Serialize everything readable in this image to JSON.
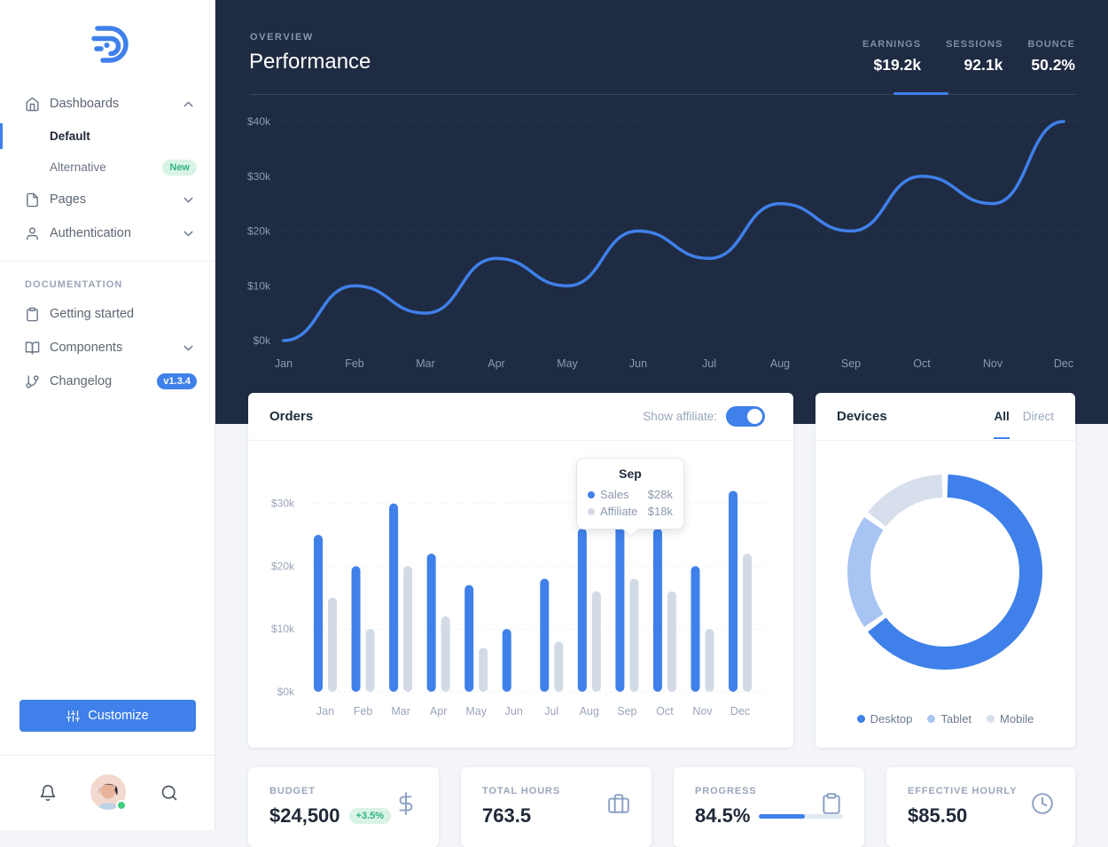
{
  "colors": {
    "accent": "#3f80ea",
    "header_navy": "#1f2b42",
    "green_badge_text": "#2fb380",
    "green_badge_bg": "#d9f4e5"
  },
  "sidebar": {
    "nav": [
      {
        "label": "Dashboards",
        "icon": "home",
        "expanded": true
      },
      {
        "label": "Default",
        "active": true
      },
      {
        "label": "Alternative",
        "badge": "New"
      },
      {
        "label": "Pages",
        "icon": "file"
      },
      {
        "label": "Authentication",
        "icon": "user"
      }
    ],
    "section": "DOCUMENTATION",
    "docs": [
      {
        "label": "Getting started",
        "icon": "clipboard"
      },
      {
        "label": "Components",
        "icon": "book-open"
      },
      {
        "label": "Changelog",
        "icon": "git-branch",
        "badge": "v1.3.4"
      }
    ],
    "customize": "Customize",
    "footer_icons": [
      "bell",
      "avatar",
      "search"
    ]
  },
  "header": {
    "eyebrow": "OVERVIEW",
    "title": "Performance",
    "stats": [
      {
        "label": "EARNINGS",
        "value": "$19.2k",
        "active": true
      },
      {
        "label": "SESSIONS",
        "value": "92.1k"
      },
      {
        "label": "BOUNCE",
        "value": "50.2%"
      }
    ]
  },
  "orders": {
    "title": "Orders",
    "toggle_label": "Show affiliate:",
    "toggle_on": true
  },
  "devices": {
    "title": "Devices",
    "tabs": [
      "All",
      "Direct"
    ],
    "active_tab": "All"
  },
  "chart_data": [
    {
      "id": "performance-line",
      "type": "line",
      "x": [
        "Jan",
        "Feb",
        "Mar",
        "Apr",
        "May",
        "Jun",
        "Jul",
        "Aug",
        "Sep",
        "Oct",
        "Nov",
        "Dec"
      ],
      "series": [
        {
          "name": "Earnings",
          "color": "#3f80ea",
          "values": [
            0,
            10,
            5,
            15,
            10,
            20,
            15,
            25,
            20,
            30,
            25,
            40
          ]
        }
      ],
      "ylim": [
        0,
        40
      ],
      "yticks": [
        {
          "v": 0,
          "label": "$0k"
        },
        {
          "v": 10,
          "label": "$10k"
        },
        {
          "v": 20,
          "label": "$20k"
        },
        {
          "v": 30,
          "label": "$30k"
        },
        {
          "v": 40,
          "label": "$40k"
        }
      ],
      "grid": "dotted-horizontal",
      "legend": "none"
    },
    {
      "id": "orders-bars",
      "type": "bar",
      "categories": [
        "Jan",
        "Feb",
        "Mar",
        "Apr",
        "May",
        "Jun",
        "Jul",
        "Aug",
        "Sep",
        "Oct",
        "Nov",
        "Dec"
      ],
      "series": [
        {
          "name": "Sales",
          "color": "#3f80ea",
          "values": [
            25,
            20,
            30,
            22,
            17,
            10,
            18,
            26,
            28,
            26,
            20,
            32
          ]
        },
        {
          "name": "Affiliate",
          "color": "#d2dae6",
          "values": [
            15,
            10,
            20,
            12,
            7,
            0,
            8,
            16,
            18,
            16,
            10,
            22
          ]
        }
      ],
      "ylim": [
        0,
        30
      ],
      "yticks": [
        {
          "v": 0,
          "label": "$0k"
        },
        {
          "v": 10,
          "label": "$10k"
        },
        {
          "v": 20,
          "label": "$20k"
        },
        {
          "v": 30,
          "label": "$30k"
        }
      ],
      "grid": "dashed-horizontal",
      "tooltip": {
        "month": "Sep",
        "rows": [
          {
            "label": "Sales",
            "value": "$28k"
          },
          {
            "label": "Affiliate",
            "value": "$18k"
          }
        ]
      }
    },
    {
      "id": "devices-donut",
      "type": "pie",
      "labels": [
        "Desktop",
        "Tablet",
        "Mobile"
      ],
      "values": [
        65,
        20,
        15
      ],
      "colors": [
        "#3f80ea",
        "#a8c4f2",
        "#d6dfeb"
      ],
      "legend_position": "bottom"
    }
  ],
  "stat_cards": [
    {
      "label": "BUDGET",
      "value": "$24,500",
      "badge": "+3.5%",
      "icon": "dollar-sign"
    },
    {
      "label": "TOTAL HOURS",
      "value": "763.5",
      "icon": "briefcase"
    },
    {
      "label": "PROGRESS",
      "value": "84.5%",
      "icon": "clipboard"
    },
    {
      "label": "EFFECTIVE HOURLY",
      "value": "$85.50",
      "icon": "clock"
    }
  ]
}
